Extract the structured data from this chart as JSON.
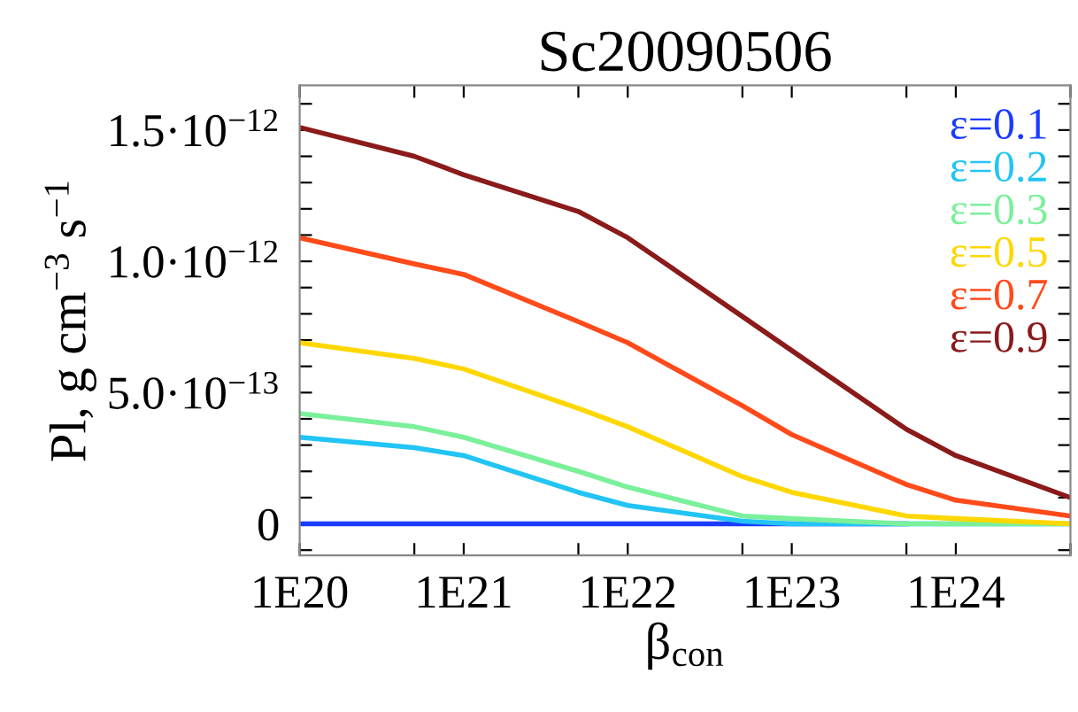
{
  "chart_data": {
    "type": "line",
    "title": "Sc20090506",
    "xlabel": "β$_{con}$",
    "ylabel": "Pl, g cm$^{−3}$ s$^{−1}$",
    "x": [
      1e+20,
      5e+20,
      1e+21,
      5e+21,
      1e+22,
      5e+22,
      1e+23,
      5e+23,
      1e+24,
      5e+24
    ],
    "series": [
      {
        "name": "ε=0.1",
        "color": "#1a3cff",
        "values": [
          0,
          0,
          0,
          0,
          0,
          0,
          0,
          0,
          null,
          null
        ]
      },
      {
        "name": "ε=0.2",
        "color": "#22c4f5",
        "values": [
          3.3e-13,
          2.9e-13,
          2.6e-13,
          1.2e-13,
          7e-14,
          1e-14,
          0,
          0,
          0,
          0
        ]
      },
      {
        "name": "ε=0.3",
        "color": "#7af09a",
        "values": [
          4.2e-13,
          3.7e-13,
          3.3e-13,
          2e-13,
          1.4e-13,
          3e-14,
          2e-14,
          0,
          0,
          0
        ]
      },
      {
        "name": "ε=0.5",
        "color": "#ffd700",
        "values": [
          6.9e-13,
          6.3e-13,
          5.9e-13,
          4.4e-13,
          3.7e-13,
          1.8e-13,
          1.2e-13,
          3e-14,
          2e-14,
          0
        ]
      },
      {
        "name": "ε=0.7",
        "color": "#ff4a1a",
        "values": [
          1.09e-12,
          9.9e-13,
          9.5e-13,
          7.7e-13,
          6.9e-13,
          4.5e-13,
          3.4e-13,
          1.5e-13,
          9e-14,
          3e-14
        ]
      },
      {
        "name": "ε=0.9",
        "color": "#8b1a1a",
        "values": [
          1.51e-12,
          1.4e-12,
          1.33e-12,
          1.19e-12,
          1.09e-12,
          7.9e-13,
          6.6e-13,
          3.6e-13,
          2.6e-13,
          1e-13
        ]
      }
    ],
    "log": "x",
    "xlim": [
      1e+20,
      5e+24
    ],
    "xticks": [
      {
        "value": 1e+20,
        "label": "1E20"
      },
      {
        "value": 5e+20,
        "label": null
      },
      {
        "value": 1e+21,
        "label": "1E21"
      },
      {
        "value": 5e+21,
        "label": null
      },
      {
        "value": 1e+22,
        "label": "1E22"
      },
      {
        "value": 5e+22,
        "label": null
      },
      {
        "value": 1e+23,
        "label": "1E23"
      },
      {
        "value": 5e+23,
        "label": null
      },
      {
        "value": 1e+24,
        "label": "1E24"
      },
      {
        "value": 5e+24,
        "label": null
      }
    ],
    "ylim": [
      -1.2e-13,
      1.67e-12
    ],
    "yticks": [
      {
        "value": -1e-13,
        "label": null
      },
      0,
      {
        "value": 1e-13,
        "label": null
      },
      {
        "value": 2e-13,
        "label": null
      },
      {
        "value": 3e-13,
        "label": null
      },
      {
        "value": 4e-13,
        "label": null
      },
      {
        "value": 5e-13,
        "label": "5.0·10$^{−13}$"
      },
      {
        "value": 6e-13,
        "label": null
      },
      {
        "value": 7e-13,
        "label": null
      },
      {
        "value": 8e-13,
        "label": null
      },
      {
        "value": 9e-13,
        "label": null
      },
      {
        "value": 1e-12,
        "label": "1.0·10$^{−12}$"
      },
      {
        "value": 1.1e-12,
        "label": null
      },
      {
        "value": 1.2e-12,
        "label": null
      },
      {
        "value": 1.3e-12,
        "label": null
      },
      {
        "value": 1.4e-12,
        "label": null
      },
      {
        "value": 1.5e-12,
        "label": "1.5·10$^{−12}$"
      },
      {
        "value": 1.6e-12,
        "label": null
      }
    ],
    "legend": "top right",
    "grid": false
  }
}
